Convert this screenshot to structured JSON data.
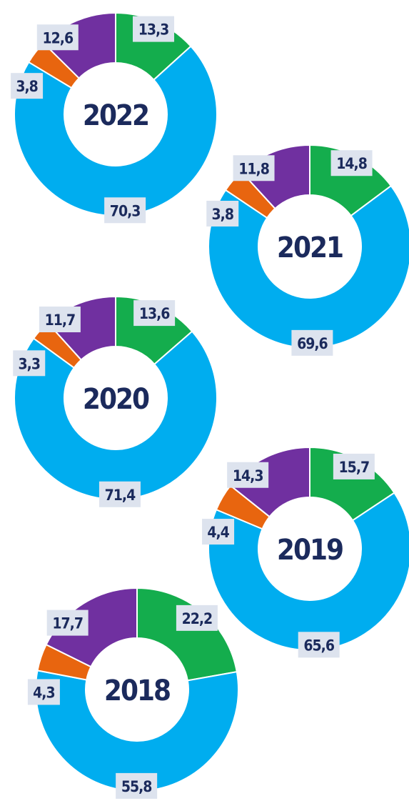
{
  "chart_data": [
    {
      "type": "pie",
      "center_label": "2022",
      "values": [
        13.3,
        70.3,
        3.8,
        12.6
      ],
      "value_labels": [
        "13,3",
        "70,3",
        "3,8",
        "12,6"
      ],
      "colors": [
        "#14ad4d",
        "#00adef",
        "#e8650f",
        "#7030a0"
      ]
    },
    {
      "type": "pie",
      "center_label": "2021",
      "values": [
        14.8,
        69.6,
        3.8,
        11.8
      ],
      "value_labels": [
        "14,8",
        "69,6",
        "3,8",
        "11,8"
      ],
      "colors": [
        "#14ad4d",
        "#00adef",
        "#e8650f",
        "#7030a0"
      ]
    },
    {
      "type": "pie",
      "center_label": "2020",
      "values": [
        13.6,
        71.4,
        3.3,
        11.7
      ],
      "value_labels": [
        "13,6",
        "71,4",
        "3,3",
        "11,7"
      ],
      "colors": [
        "#14ad4d",
        "#00adef",
        "#e8650f",
        "#7030a0"
      ]
    },
    {
      "type": "pie",
      "center_label": "2019",
      "values": [
        15.7,
        65.6,
        4.4,
        14.3
      ],
      "value_labels": [
        "15,7",
        "65,6",
        "4,4",
        "14,3"
      ],
      "colors": [
        "#14ad4d",
        "#00adef",
        "#e8650f",
        "#7030a0"
      ]
    },
    {
      "type": "pie",
      "center_label": "2018",
      "values": [
        22.2,
        55.8,
        4.3,
        17.7
      ],
      "value_labels": [
        "22,2",
        "55,8",
        "4,3",
        "17,7"
      ],
      "colors": [
        "#14ad4d",
        "#00adef",
        "#e8650f",
        "#7030a0"
      ]
    }
  ]
}
